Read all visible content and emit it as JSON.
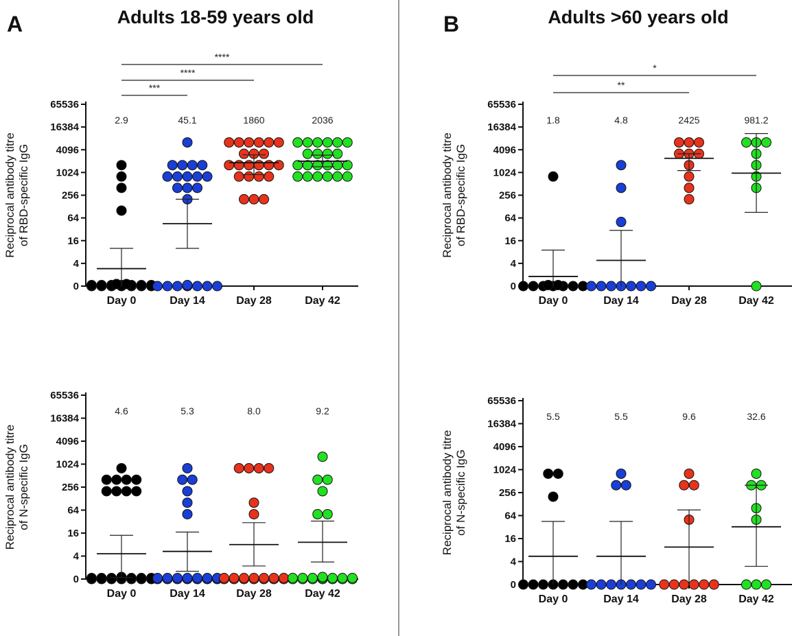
{
  "panels": [
    {
      "letter": "A",
      "title": "Adults 18-59 years old"
    },
    {
      "letter": "B",
      "title": "Adults >60 years old"
    }
  ],
  "chart_data": [
    {
      "type": "scatter",
      "panel": "A",
      "title": "Adults 18-59 years old",
      "ylabel": [
        "Reciprocal antibody titre",
        "of RBD-specific IgG"
      ],
      "yscale": "log2 (0 shown at baseline)",
      "yticks": [
        "0",
        "4",
        "16",
        "64",
        "256",
        "1024",
        "4096",
        "16384",
        "65536"
      ],
      "categories": [
        "Day 0",
        "Day 14",
        "Day 28",
        "Day 42"
      ],
      "gmt_labels": [
        "2.9",
        "45.1",
        "1860",
        "2036"
      ],
      "series": [
        {
          "color": "#000000",
          "points": [
            0,
            0,
            0,
            0,
            0,
            0,
            0,
            0,
            0,
            0,
            0,
            0,
            0,
            0,
            0,
            0,
            100,
            400,
            800,
            1600
          ],
          "mean": 2.9,
          "err_low": 0,
          "err_high": 10
        },
        {
          "color": "#1a3fd6",
          "points": [
            0,
            0,
            0,
            0,
            0,
            0,
            0,
            0,
            200,
            400,
            400,
            400,
            800,
            800,
            800,
            800,
            800,
            1600,
            1600,
            1600,
            1600,
            6400
          ],
          "mean": 45.1,
          "err_low": 10,
          "err_high": 200
        },
        {
          "color": "#e8331c",
          "points": [
            200,
            200,
            200,
            800,
            800,
            800,
            800,
            1600,
            1600,
            1600,
            1600,
            1600,
            1600,
            3200,
            3200,
            3200,
            6400,
            6400,
            6400,
            6400,
            6400,
            6400
          ],
          "mean": 1860,
          "err_low": 900,
          "err_high": 3000
        },
        {
          "color": "#22e022",
          "points": [
            800,
            800,
            800,
            800,
            800,
            800,
            1600,
            1600,
            1600,
            1600,
            1600,
            1600,
            3200,
            3200,
            3200,
            3200,
            6400,
            6400,
            6400,
            6400,
            6400,
            6400
          ],
          "mean": 2036,
          "err_low": 1450,
          "err_high": 2950
        }
      ],
      "significance": [
        {
          "from": "Day 0",
          "to": "Day 14",
          "label": "***"
        },
        {
          "from": "Day 0",
          "to": "Day 28",
          "label": "****"
        },
        {
          "from": "Day 0",
          "to": "Day 42",
          "label": "****"
        }
      ]
    },
    {
      "type": "scatter",
      "panel": "B",
      "title": "Adults >60 years old",
      "ylabel": [
        "Reciprocal antibody titre",
        "of RBD-specific IgG"
      ],
      "yscale": "log2 (0 shown at baseline)",
      "yticks": [
        "0",
        "4",
        "16",
        "64",
        "256",
        "1024",
        "4096",
        "16384",
        "65536"
      ],
      "categories": [
        "Day 0",
        "Day 14",
        "Day 28",
        "Day 42"
      ],
      "gmt_labels": [
        "1.8",
        "4.8",
        "2425",
        "981.2"
      ],
      "series": [
        {
          "color": "#000000",
          "points": [
            0,
            0,
            0,
            0,
            0,
            0,
            0,
            0,
            0,
            800
          ],
          "mean": 1.8,
          "err_low": 0,
          "err_high": 9
        },
        {
          "color": "#1a3fd6",
          "points": [
            0,
            0,
            0,
            0,
            0,
            0,
            0,
            50,
            400,
            1600
          ],
          "mean": 4.8,
          "err_low": 0,
          "err_high": 30
        },
        {
          "color": "#e8331c",
          "points": [
            200,
            400,
            800,
            1600,
            3200,
            3200,
            3200,
            6400,
            6400,
            6400
          ],
          "mean": 2425,
          "err_low": 1150,
          "err_high": 3200
        },
        {
          "color": "#22e022",
          "points": [
            0,
            400,
            800,
            1600,
            3200,
            6400,
            6400,
            6400
          ],
          "mean": 981.2,
          "err_low": 90,
          "err_high": 11000
        }
      ],
      "significance": [
        {
          "from": "Day 0",
          "to": "Day 28",
          "label": "**"
        },
        {
          "from": "Day 0",
          "to": "Day 42",
          "label": "*"
        }
      ]
    },
    {
      "type": "scatter",
      "panel": "A",
      "ylabel": [
        "Reciprocal antibody titre",
        "of N-specific IgG"
      ],
      "yscale": "log2 (0 shown at baseline)",
      "yticks": [
        "0",
        "4",
        "16",
        "64",
        "256",
        "1024",
        "4096",
        "16384",
        "65536"
      ],
      "categories": [
        "Day 0",
        "Day 14",
        "Day 28",
        "Day 42"
      ],
      "gmt_labels": [
        "4.6",
        "5.3",
        "8.0",
        "9.2"
      ],
      "series": [
        {
          "color": "#000000",
          "points": [
            0,
            0,
            0,
            0,
            0,
            0,
            0,
            0,
            0,
            0,
            0,
            0,
            0,
            0,
            0,
            200,
            200,
            200,
            200,
            400,
            400,
            400,
            400,
            800
          ],
          "mean": 4.6,
          "err_low": 1.1,
          "err_high": 14
        },
        {
          "color": "#1a3fd6",
          "points": [
            0,
            0,
            0,
            0,
            0,
            0,
            0,
            0,
            0,
            0,
            0,
            0,
            0,
            0,
            50,
            100,
            200,
            400,
            400,
            800
          ],
          "mean": 5.3,
          "err_low": 1.6,
          "err_high": 17
        },
        {
          "color": "#e8331c",
          "points": [
            0,
            0,
            0,
            0,
            0,
            0,
            0,
            0,
            0,
            0,
            0,
            0,
            0,
            0,
            50,
            100,
            800,
            800,
            800,
            800
          ],
          "mean": 8.0,
          "err_low": 2.2,
          "err_high": 30
        },
        {
          "color": "#22e022",
          "points": [
            0,
            0,
            0,
            0,
            0,
            0,
            0,
            0,
            0,
            0,
            0,
            0,
            0,
            0,
            0,
            50,
            50,
            200,
            400,
            400,
            1600
          ],
          "mean": 9.2,
          "err_low": 2.8,
          "err_high": 33
        }
      ]
    },
    {
      "type": "scatter",
      "panel": "B",
      "ylabel": [
        "Reciprocal antibody titre",
        "of N-specific IgG"
      ],
      "yscale": "log2 (0 shown at baseline)",
      "yticks": [
        "0",
        "4",
        "16",
        "64",
        "256",
        "1024",
        "4096",
        "16384",
        "65536"
      ],
      "categories": [
        "Day 0",
        "Day 14",
        "Day 28",
        "Day 42"
      ],
      "gmt_labels": [
        "5.5",
        "5.5",
        "9.6",
        "32.6"
      ],
      "series": [
        {
          "color": "#000000",
          "points": [
            0,
            0,
            0,
            0,
            0,
            0,
            0,
            200,
            800,
            800
          ],
          "mean": 5.5,
          "err_low": 0,
          "err_high": 45
        },
        {
          "color": "#1a3fd6",
          "points": [
            0,
            0,
            0,
            0,
            0,
            0,
            0,
            400,
            400,
            800
          ],
          "mean": 5.5,
          "err_low": 0,
          "err_high": 45
        },
        {
          "color": "#e8331c",
          "points": [
            0,
            0,
            0,
            0,
            0,
            0,
            50,
            400,
            400,
            800
          ],
          "mean": 9.6,
          "err_low": 0,
          "err_high": 90
        },
        {
          "color": "#22e022",
          "points": [
            0,
            0,
            0,
            50,
            100,
            400,
            400,
            800
          ],
          "mean": 32.6,
          "err_low": 3,
          "err_high": 400
        }
      ]
    }
  ]
}
